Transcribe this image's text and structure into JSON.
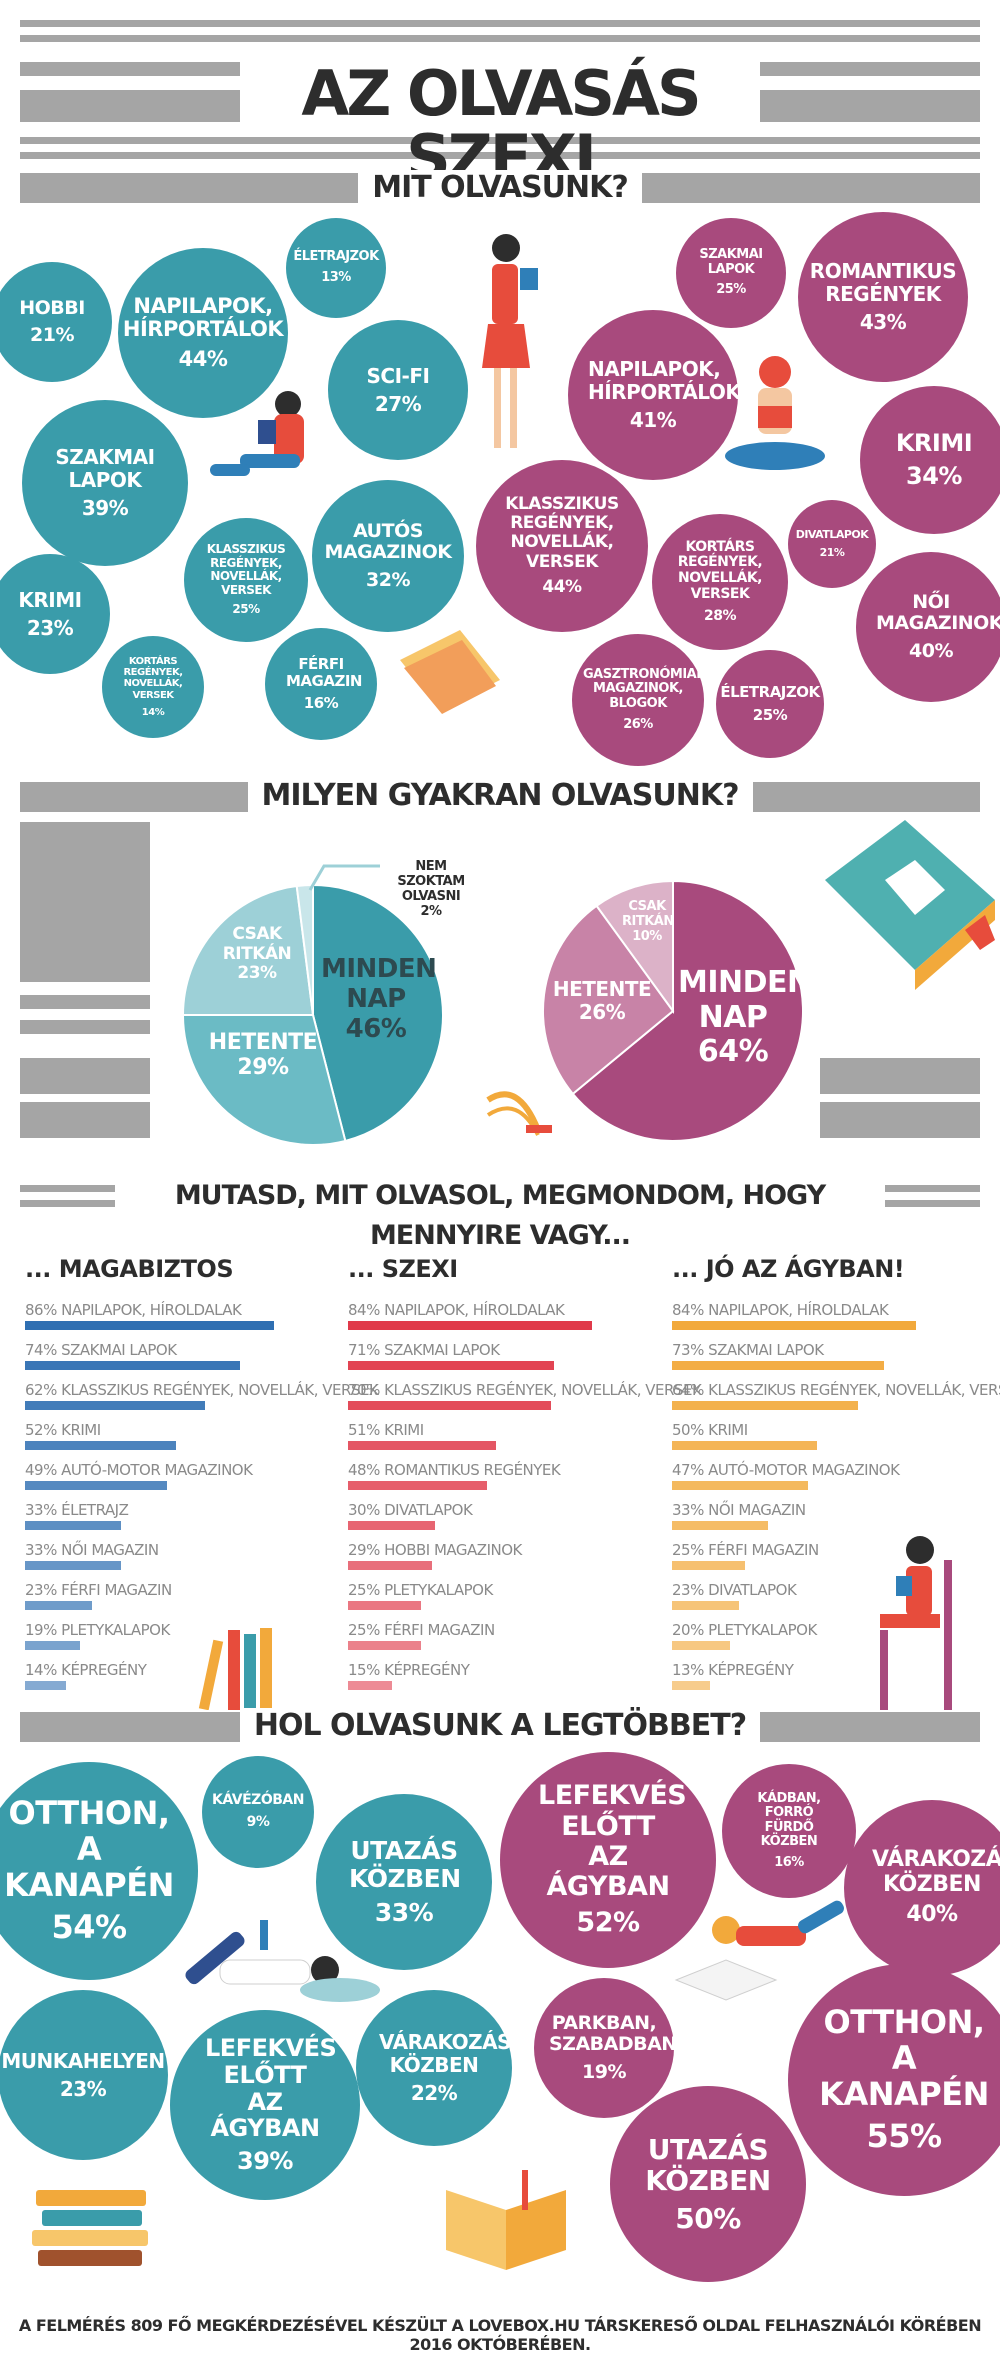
{
  "title": "AZ OLVASÁS SZEXI",
  "sections": {
    "what": "MIT OLVASUNK?",
    "how_often": "MILYEN GYAKRAN OLVASUNK?",
    "show_me": "MUTASD, MIT OLVASOL, MEGMONDOM, HOGY MENNYIRE VAGY...",
    "where": "HOL OLVASUNK A LEGTÖBBET?"
  },
  "colors": {
    "teal": "#3a9caa",
    "plum": "#a84a7d",
    "blue": "#2f6fb2",
    "red": "#e03a4a",
    "orange": "#f2a93b",
    "gray": "#a5a5a5"
  },
  "what_teal": [
    {
      "label": "HOBBI",
      "pct": "21%"
    },
    {
      "label": "NAPILAPOK, HÍRPORTÁLOK",
      "pct": "44%"
    },
    {
      "label": "ÉLETRAJZOK",
      "pct": "13%"
    },
    {
      "label": "SCI-FI",
      "pct": "27%"
    },
    {
      "label": "SZAKMAI LAPOK",
      "pct": "39%"
    },
    {
      "label": "AUTÓS MAGAZINOK",
      "pct": "32%"
    },
    {
      "label": "KLASSZIKUS REGÉNYEK, NOVELLÁK, VERSEK",
      "pct": "25%"
    },
    {
      "label": "KRIMI",
      "pct": "23%"
    },
    {
      "label": "FÉRFI MAGAZIN",
      "pct": "16%"
    },
    {
      "label": "KORTÁRS REGÉNYEK, NOVELLÁK, VERSEK",
      "pct": "14%"
    }
  ],
  "what_plum": [
    {
      "label": "SZAKMAI LAPOK",
      "pct": "25%"
    },
    {
      "label": "ROMANTIKUS REGÉNYEK",
      "pct": "43%"
    },
    {
      "label": "NAPILAPOK, HÍRPORTÁLOK",
      "pct": "41%"
    },
    {
      "label": "KRIMI",
      "pct": "34%"
    },
    {
      "label": "KLASSZIKUS REGÉNYEK, NOVELLÁK, VERSEK",
      "pct": "44%"
    },
    {
      "label": "DIVATLAPOK",
      "pct": "21%"
    },
    {
      "label": "KORTÁRS REGÉNYEK, NOVELLÁK, VERSEK",
      "pct": "28%"
    },
    {
      "label": "NŐI MAGAZINOK",
      "pct": "40%"
    },
    {
      "label": "GASZTRONÓMIAI MAGAZINOK, BLOGOK",
      "pct": "26%"
    },
    {
      "label": "ÉLETRAJZOK",
      "pct": "25%"
    }
  ],
  "chart_data": [
    {
      "type": "pie",
      "slices": [
        {
          "label": "MINDEN NAP",
          "value": 46,
          "pct": "46%",
          "color": "#3a9caa"
        },
        {
          "label": "HETENTE",
          "value": 29,
          "pct": "29%",
          "color": "#6bbbc5"
        },
        {
          "label": "CSAK RITKÁN",
          "value": 23,
          "pct": "23%",
          "color": "#9dd0d7"
        },
        {
          "label": "NEM SZOKTAM OLVASNI",
          "value": 2,
          "pct": "2%",
          "color": "#c9e6ea"
        }
      ]
    },
    {
      "type": "pie",
      "slices": [
        {
          "label": "MINDEN NAP",
          "value": 64,
          "pct": "64%",
          "color": "#a84a7d"
        },
        {
          "label": "HETENTE",
          "value": 26,
          "pct": "26%",
          "color": "#c883a7"
        },
        {
          "label": "CSAK RITKÁN",
          "value": 10,
          "pct": "10%",
          "color": "#dcb2c8"
        }
      ]
    },
    {
      "type": "bar",
      "title": "... MAGABIZTOS",
      "color": "#2f6fb2",
      "categories": [
        "NAPILAPOK, HÍROLDALAK",
        "SZAKMAI LAPOK",
        "KLASSZIKUS REGÉNYEK, NOVELLÁK, VERSEK",
        "KRIMI",
        "AUTÓ-MOTOR MAGAZINOK",
        "ÉLETRAJZ",
        "NŐI MAGAZIN",
        "FÉRFI MAGAZIN",
        "PLETYKALAPOK",
        "KÉPREGÉNY"
      ],
      "values": [
        86,
        74,
        62,
        52,
        49,
        33,
        33,
        23,
        19,
        14
      ]
    },
    {
      "type": "bar",
      "title": "... SZEXI",
      "color": "#e03a4a",
      "categories": [
        "NAPILAPOK, HÍROLDALAK",
        "SZAKMAI LAPOK",
        "KLASSZIKUS REGÉNYEK, NOVELLÁK, VERSEK",
        "KRIMI",
        "ROMANTIKUS REGÉNYEK",
        "DIVATLAPOK",
        "HOBBI MAGAZINOK",
        "PLETYKALAPOK",
        "FÉRFI MAGAZIN",
        "KÉPREGÉNY"
      ],
      "values": [
        84,
        71,
        70,
        51,
        48,
        30,
        29,
        25,
        25,
        15
      ]
    },
    {
      "type": "bar",
      "title": "... JÓ AZ ÁGYBAN!",
      "color": "#f2a93b",
      "categories": [
        "NAPILAPOK, HÍROLDALAK",
        "SZAKMAI LAPOK",
        "KLASSZIKUS REGÉNYEK, NOVELLÁK, VERSEK",
        "KRIMI",
        "AUTÓ-MOTOR MAGAZINOK",
        "NŐI MAGAZIN",
        "FÉRFI MAGAZIN",
        "DIVATLAPOK",
        "PLETYKALAPOK",
        "KÉPREGÉNY"
      ],
      "values": [
        84,
        73,
        64,
        50,
        47,
        33,
        25,
        23,
        20,
        13
      ]
    }
  ],
  "where_teal": [
    {
      "label": "OTTHON, A KANAPÉN",
      "pct": "54%"
    },
    {
      "label": "KÁVÉZÓBAN",
      "pct": "9%"
    },
    {
      "label": "UTAZÁS KÖZBEN",
      "pct": "33%"
    },
    {
      "label": "MUNKAHELYEN",
      "pct": "23%"
    },
    {
      "label": "LEFEKVÉS ELŐTT AZ ÁGYBAN",
      "pct": "39%"
    },
    {
      "label": "VÁRAKOZÁS KÖZBEN",
      "pct": "22%"
    }
  ],
  "where_plum": [
    {
      "label": "LEFEKVÉS ELŐTT AZ ÁGYBAN",
      "pct": "52%"
    },
    {
      "label": "KÁDBAN, FORRÓ FÜRDŐ KÖZBEN",
      "pct": "16%"
    },
    {
      "label": "VÁRAKOZÁS KÖZBEN",
      "pct": "40%"
    },
    {
      "label": "PARKBAN, SZABADBAN",
      "pct": "19%"
    },
    {
      "label": "OTTHON, A KANAPÉN",
      "pct": "55%"
    },
    {
      "label": "UTAZÁS KÖZBEN",
      "pct": "50%"
    }
  ],
  "footer": "A FELMÉRÉS 809 FŐ MEGKÉRDEZÉSÉVEL KÉSZÜLT A LOVEBOX.HU TÁRSKERESŐ OLDAL FELHASZNÁLÓI KÖRÉBEN 2016 OKTÓBERÉBEN."
}
